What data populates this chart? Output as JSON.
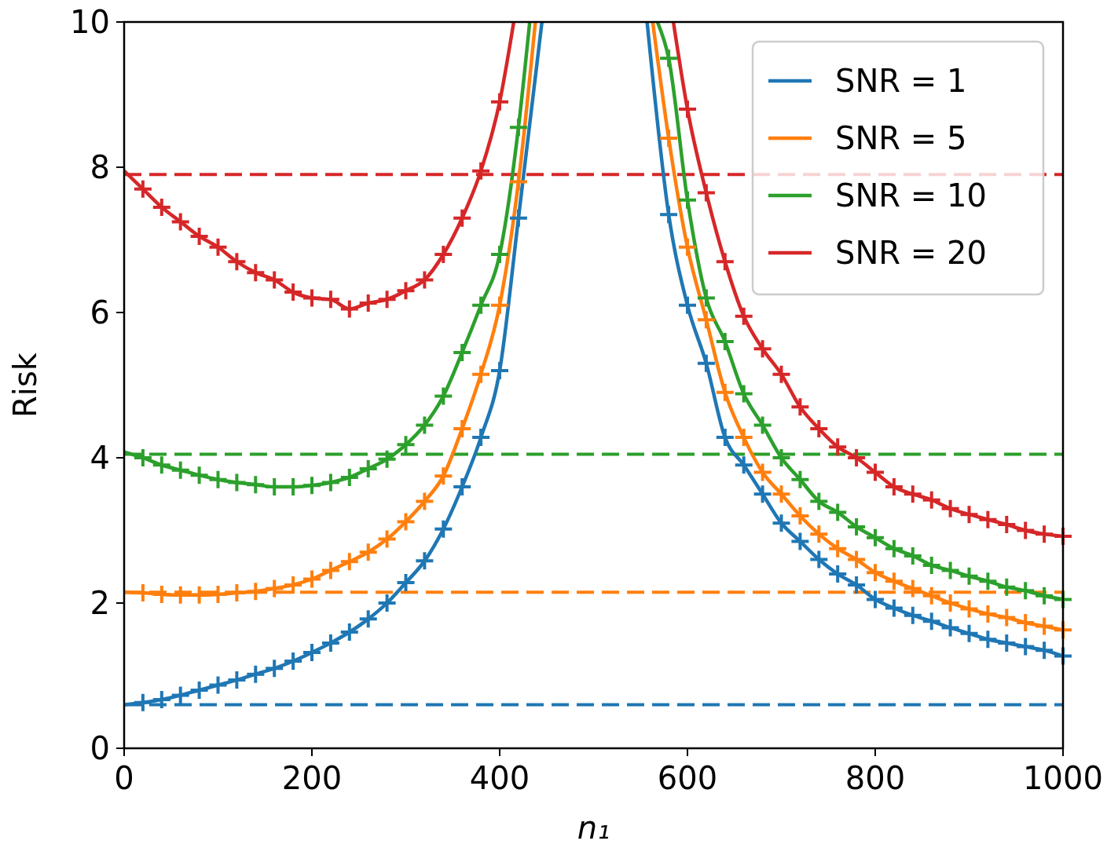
{
  "chart_data": {
    "type": "line",
    "xlabel": "n₁",
    "ylabel": "Risk",
    "xlim": [
      0,
      1000
    ],
    "ylim": [
      0,
      10
    ],
    "xticks": [
      0,
      200,
      400,
      600,
      800,
      1000
    ],
    "yticks": [
      0,
      2,
      4,
      6,
      8,
      10
    ],
    "grid": false,
    "legend": "top right",
    "line_style": "solid",
    "series": [
      {
        "name": "SNR = 1",
        "color": "#1f77b4",
        "x": [
          0,
          20,
          40,
          60,
          80,
          100,
          120,
          140,
          160,
          180,
          200,
          220,
          240,
          260,
          280,
          300,
          320,
          340,
          360,
          380,
          400,
          420,
          445,
          500,
          557,
          580,
          600,
          620,
          640,
          660,
          680,
          700,
          720,
          740,
          760,
          780,
          800,
          820,
          840,
          860,
          880,
          900,
          920,
          940,
          960,
          980,
          1000
        ],
        "values": [
          0.6,
          0.63,
          0.67,
          0.73,
          0.8,
          0.87,
          0.94,
          1.02,
          1.1,
          1.2,
          1.32,
          1.45,
          1.6,
          1.78,
          2.0,
          2.28,
          2.58,
          3.02,
          3.6,
          4.28,
          5.2,
          7.3,
          10,
          null,
          10,
          7.35,
          6.1,
          5.3,
          4.28,
          3.9,
          3.5,
          3.1,
          2.85,
          2.6,
          2.4,
          2.25,
          2.05,
          1.93,
          1.83,
          1.75,
          1.66,
          1.58,
          1.5,
          1.45,
          1.4,
          1.35,
          1.27
        ]
      },
      {
        "name": "SNR = 5",
        "color": "#ff7f0e",
        "x": [
          0,
          20,
          40,
          60,
          80,
          100,
          120,
          140,
          160,
          180,
          200,
          220,
          240,
          260,
          280,
          300,
          320,
          340,
          360,
          380,
          400,
          420,
          438,
          500,
          563,
          580,
          600,
          620,
          640,
          660,
          680,
          700,
          720,
          740,
          760,
          780,
          800,
          820,
          840,
          860,
          880,
          900,
          920,
          940,
          960,
          980,
          1000
        ],
        "values": [
          2.15,
          2.14,
          2.12,
          2.11,
          2.11,
          2.12,
          2.14,
          2.16,
          2.2,
          2.25,
          2.33,
          2.45,
          2.57,
          2.7,
          2.88,
          3.12,
          3.4,
          3.75,
          4.4,
          5.15,
          6.1,
          7.8,
          10,
          null,
          10,
          8.4,
          6.9,
          5.9,
          4.9,
          4.28,
          3.8,
          3.5,
          3.2,
          2.95,
          2.75,
          2.6,
          2.42,
          2.3,
          2.2,
          2.1,
          2.0,
          1.92,
          1.85,
          1.8,
          1.73,
          1.68,
          1.63
        ]
      },
      {
        "name": "SNR = 10",
        "color": "#2ca02c",
        "x": [
          0,
          20,
          40,
          60,
          80,
          100,
          120,
          140,
          160,
          180,
          200,
          220,
          240,
          260,
          280,
          300,
          320,
          340,
          360,
          380,
          400,
          420,
          432,
          500,
          568,
          580,
          600,
          620,
          640,
          660,
          680,
          700,
          720,
          740,
          760,
          780,
          800,
          820,
          840,
          860,
          880,
          900,
          920,
          940,
          960,
          980,
          1000
        ],
        "values": [
          4.08,
          4.0,
          3.9,
          3.83,
          3.76,
          3.7,
          3.66,
          3.63,
          3.6,
          3.6,
          3.62,
          3.66,
          3.73,
          3.85,
          3.98,
          4.18,
          4.45,
          4.85,
          5.45,
          6.1,
          6.8,
          8.55,
          10,
          null,
          10,
          9.5,
          7.55,
          6.2,
          5.6,
          4.88,
          4.45,
          4.0,
          3.7,
          3.4,
          3.25,
          3.05,
          2.9,
          2.75,
          2.65,
          2.52,
          2.45,
          2.37,
          2.3,
          2.22,
          2.17,
          2.1,
          2.05
        ]
      },
      {
        "name": "SNR = 20",
        "color": "#d62728",
        "x": [
          0,
          20,
          40,
          60,
          80,
          100,
          120,
          140,
          160,
          180,
          200,
          220,
          240,
          260,
          280,
          300,
          320,
          340,
          360,
          380,
          400,
          415,
          500,
          585,
          600,
          620,
          640,
          660,
          680,
          700,
          720,
          740,
          760,
          780,
          800,
          820,
          840,
          860,
          880,
          900,
          920,
          940,
          960,
          980,
          1000
        ],
        "values": [
          7.95,
          7.7,
          7.45,
          7.25,
          7.05,
          6.9,
          6.7,
          6.55,
          6.45,
          6.28,
          6.2,
          6.18,
          6.05,
          6.13,
          6.18,
          6.3,
          6.45,
          6.8,
          7.3,
          7.95,
          8.9,
          10,
          null,
          10,
          8.8,
          7.65,
          6.7,
          5.95,
          5.5,
          5.15,
          4.7,
          4.4,
          4.15,
          4.0,
          3.8,
          3.6,
          3.5,
          3.42,
          3.3,
          3.22,
          3.15,
          3.08,
          3.0,
          2.95,
          2.92
        ]
      },
      {
        "type": "scatter",
        "marker": "cross",
        "color": "#1f77b4",
        "x": [
          20,
          40,
          60,
          80,
          100,
          120,
          140,
          160,
          180,
          200,
          220,
          240,
          260,
          280,
          300,
          320,
          340,
          360,
          380,
          400,
          420,
          580,
          600,
          620,
          640,
          660,
          680,
          700,
          720,
          740,
          760,
          780,
          800,
          820,
          840,
          860,
          880,
          900,
          920,
          940,
          960,
          980,
          1000
        ],
        "values": [
          0.63,
          0.67,
          0.73,
          0.8,
          0.87,
          0.94,
          1.02,
          1.1,
          1.2,
          1.32,
          1.45,
          1.6,
          1.78,
          2.0,
          2.28,
          2.58,
          3.02,
          3.6,
          4.28,
          5.2,
          7.3,
          7.35,
          6.1,
          5.3,
          4.28,
          3.9,
          3.5,
          3.1,
          2.85,
          2.6,
          2.4,
          2.25,
          2.05,
          1.93,
          1.83,
          1.75,
          1.66,
          1.58,
          1.5,
          1.45,
          1.4,
          1.35,
          1.27
        ]
      },
      {
        "type": "scatter",
        "marker": "cross",
        "color": "#ff7f0e",
        "x": [
          20,
          40,
          60,
          80,
          100,
          120,
          140,
          160,
          180,
          200,
          220,
          240,
          260,
          280,
          300,
          320,
          340,
          360,
          380,
          400,
          420,
          580,
          600,
          620,
          640,
          660,
          680,
          700,
          720,
          740,
          760,
          780,
          800,
          820,
          840,
          860,
          880,
          900,
          920,
          940,
          960,
          980,
          1000
        ],
        "values": [
          2.14,
          2.12,
          2.11,
          2.11,
          2.12,
          2.14,
          2.16,
          2.2,
          2.25,
          2.33,
          2.45,
          2.57,
          2.7,
          2.88,
          3.12,
          3.4,
          3.75,
          4.4,
          5.15,
          6.1,
          7.8,
          8.4,
          6.9,
          5.9,
          4.9,
          4.28,
          3.8,
          3.5,
          3.2,
          2.95,
          2.75,
          2.6,
          2.42,
          2.3,
          2.2,
          2.1,
          2.0,
          1.92,
          1.85,
          1.8,
          1.73,
          1.68,
          1.63
        ]
      },
      {
        "type": "scatter",
        "marker": "cross",
        "color": "#2ca02c",
        "x": [
          20,
          40,
          60,
          80,
          100,
          120,
          140,
          160,
          180,
          200,
          220,
          240,
          260,
          280,
          300,
          320,
          340,
          360,
          380,
          400,
          420,
          580,
          600,
          620,
          640,
          660,
          680,
          700,
          720,
          740,
          760,
          780,
          800,
          820,
          840,
          860,
          880,
          900,
          920,
          940,
          960,
          980,
          1000
        ],
        "values": [
          4.0,
          3.9,
          3.83,
          3.76,
          3.7,
          3.66,
          3.63,
          3.6,
          3.6,
          3.62,
          3.66,
          3.73,
          3.85,
          3.98,
          4.18,
          4.45,
          4.85,
          5.45,
          6.1,
          6.8,
          8.55,
          9.5,
          7.55,
          6.2,
          5.6,
          4.88,
          4.45,
          4.0,
          3.7,
          3.4,
          3.25,
          3.05,
          2.9,
          2.75,
          2.65,
          2.52,
          2.45,
          2.37,
          2.3,
          2.22,
          2.17,
          2.1,
          2.05
        ]
      },
      {
        "type": "scatter",
        "marker": "cross",
        "color": "#d62728",
        "x": [
          20,
          40,
          60,
          80,
          100,
          120,
          140,
          160,
          180,
          200,
          220,
          240,
          260,
          280,
          300,
          320,
          340,
          360,
          380,
          400,
          600,
          620,
          640,
          660,
          680,
          700,
          720,
          740,
          760,
          780,
          800,
          820,
          840,
          860,
          880,
          900,
          920,
          940,
          960,
          980,
          1000
        ],
        "values": [
          7.7,
          7.45,
          7.25,
          7.05,
          6.9,
          6.7,
          6.55,
          6.45,
          6.28,
          6.2,
          6.18,
          6.05,
          6.13,
          6.18,
          6.3,
          6.45,
          6.8,
          7.3,
          7.95,
          8.9,
          8.8,
          7.65,
          6.7,
          5.95,
          5.5,
          5.15,
          4.7,
          4.4,
          4.15,
          4.0,
          3.8,
          3.6,
          3.5,
          3.42,
          3.3,
          3.22,
          3.15,
          3.08,
          3.0,
          2.95,
          2.92
        ]
      }
    ],
    "ref_lines": [
      {
        "axis": "y",
        "value": 0.6,
        "color": "#1f77b4",
        "line_style": "dashed"
      },
      {
        "axis": "y",
        "value": 2.15,
        "color": "#ff7f0e",
        "line_style": "dashed"
      },
      {
        "axis": "y",
        "value": 4.05,
        "color": "#2ca02c",
        "line_style": "dashed"
      },
      {
        "axis": "y",
        "value": 7.9,
        "color": "#d62728",
        "line_style": "dashed"
      }
    ]
  }
}
